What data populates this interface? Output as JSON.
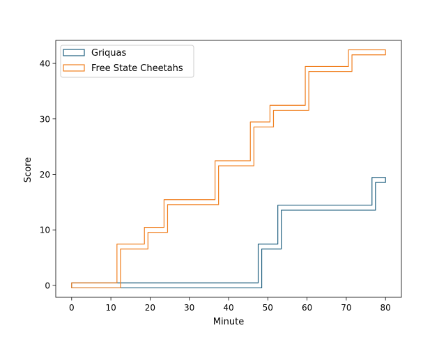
{
  "chart_data": {
    "type": "area",
    "title": "",
    "xlabel": "Minute",
    "ylabel": "Score",
    "xlim": [
      -4.05,
      84.05
    ],
    "ylim": [
      -2.15,
      44.15
    ],
    "xticks": [
      0,
      10,
      20,
      30,
      40,
      50,
      60,
      70,
      80
    ],
    "yticks": [
      0,
      10,
      20,
      30,
      40
    ],
    "grid": false,
    "legend_position": "top-left",
    "series": [
      {
        "name": "Griquas",
        "color": "#1f5f7f",
        "steps": [
          [
            0,
            0
          ],
          [
            48,
            7
          ],
          [
            53,
            14
          ],
          [
            77,
            19
          ],
          [
            80,
            19
          ]
        ]
      },
      {
        "name": "Free State Cheetahs",
        "color": "#f07f1f",
        "steps": [
          [
            0,
            0
          ],
          [
            12,
            7
          ],
          [
            19,
            10
          ],
          [
            24,
            15
          ],
          [
            37,
            22
          ],
          [
            46,
            29
          ],
          [
            51,
            32
          ],
          [
            60,
            39
          ],
          [
            71,
            42
          ],
          [
            80,
            42
          ]
        ]
      }
    ]
  }
}
